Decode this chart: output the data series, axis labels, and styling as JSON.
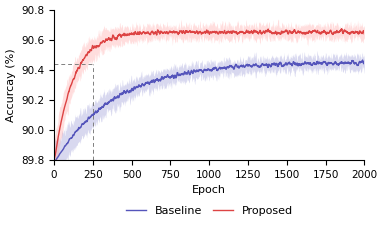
{
  "title": "",
  "xlabel": "Epoch",
  "ylabel": "Accurcay (%)",
  "xlim": [
    0,
    2000
  ],
  "ylim": [
    89.8,
    90.8
  ],
  "yticks": [
    89.8,
    90.0,
    90.2,
    90.4,
    90.6,
    90.8
  ],
  "xticks": [
    0,
    250,
    500,
    750,
    1000,
    1250,
    1500,
    1750,
    2000
  ],
  "baseline_color": "#5555bb",
  "proposed_color": "#dd4444",
  "baseline_fill_color": "#aaaadd",
  "proposed_fill_color": "#ffaaaa",
  "baseline_fill_alpha": 0.45,
  "proposed_fill_alpha": 0.4,
  "dashed_x": 250,
  "dashed_y": 90.44,
  "legend_labels": [
    "Baseline",
    "Proposed"
  ],
  "figsize": [
    3.83,
    2.42
  ],
  "dpi": 100
}
